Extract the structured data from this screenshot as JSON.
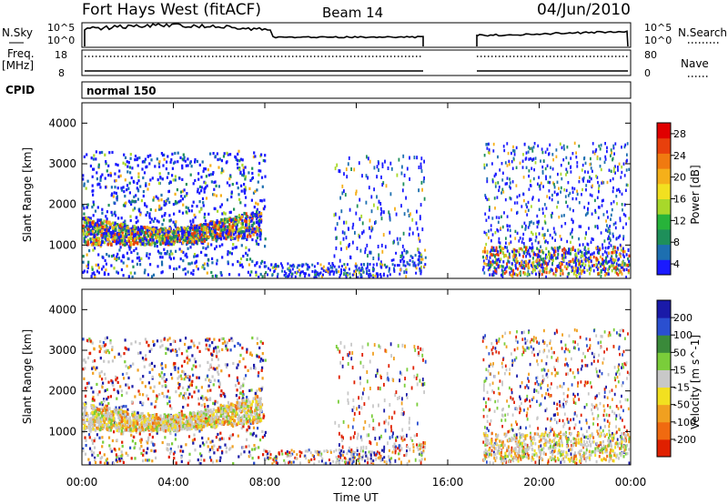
{
  "header": {
    "station": "Fort Hays West (fitACF)",
    "beam": "Beam 14",
    "date": "04/Jun/2010"
  },
  "panels": {
    "nsky_label": "N.Sky",
    "nsky_ticks": [
      "10^5",
      "10^0"
    ],
    "nsearch_label": "N.Search",
    "nsearch_ticks": [
      "10^5",
      "10^0"
    ],
    "freq_label": "Freq.",
    "freq_unit": "[MHz]",
    "freq_ticks": [
      "18",
      "8"
    ],
    "nave_label": "Nave",
    "nave_ticks": [
      "80",
      "0"
    ],
    "cpid_label": "CPID",
    "cpid_value": "normal 150"
  },
  "chart_data": [
    {
      "type": "heatmap",
      "title": "",
      "ylabel": "Slant Range [km]",
      "yticks": [
        "4000",
        "3000",
        "2000",
        "1000"
      ],
      "ylim": [
        180,
        4500
      ],
      "xlim": [
        0,
        24
      ],
      "colorbar_label": "Power [dB]",
      "colorbar_ticks": [
        "28",
        "24",
        "20",
        "16",
        "12",
        "8",
        "4"
      ],
      "colorbar_range": [
        0,
        30
      ],
      "colorbar_colors": [
        "#1a1aff",
        "#1d6fb0",
        "#1e8f5a",
        "#27b33a",
        "#a8d82a",
        "#f2e020",
        "#f5b01a",
        "#f07a10",
        "#e8400c",
        "#e00000"
      ]
    },
    {
      "type": "heatmap",
      "title": "",
      "ylabel": "Slant Range [km]",
      "yticks": [
        "4000",
        "3000",
        "2000",
        "1000"
      ],
      "ylim": [
        180,
        4500
      ],
      "xlim": [
        0,
        24
      ],
      "xlabel": "Time UT",
      "xticks": [
        "00:00",
        "04:00",
        "08:00",
        "12:00",
        "16:00",
        "20:00",
        "00:00"
      ],
      "colorbar_label": "Velocity [m s^-1]",
      "colorbar_ticks": [
        "200",
        "100",
        "50",
        "15",
        "-15",
        "-50",
        "-100",
        "-200"
      ],
      "colorbar_colors": [
        "#1a1aa8",
        "#2a4fd0",
        "#3a8a3a",
        "#7acd3a",
        "#c8c8c8",
        "#f2e020",
        "#f0a020",
        "#f06a10",
        "#e02000"
      ]
    }
  ]
}
